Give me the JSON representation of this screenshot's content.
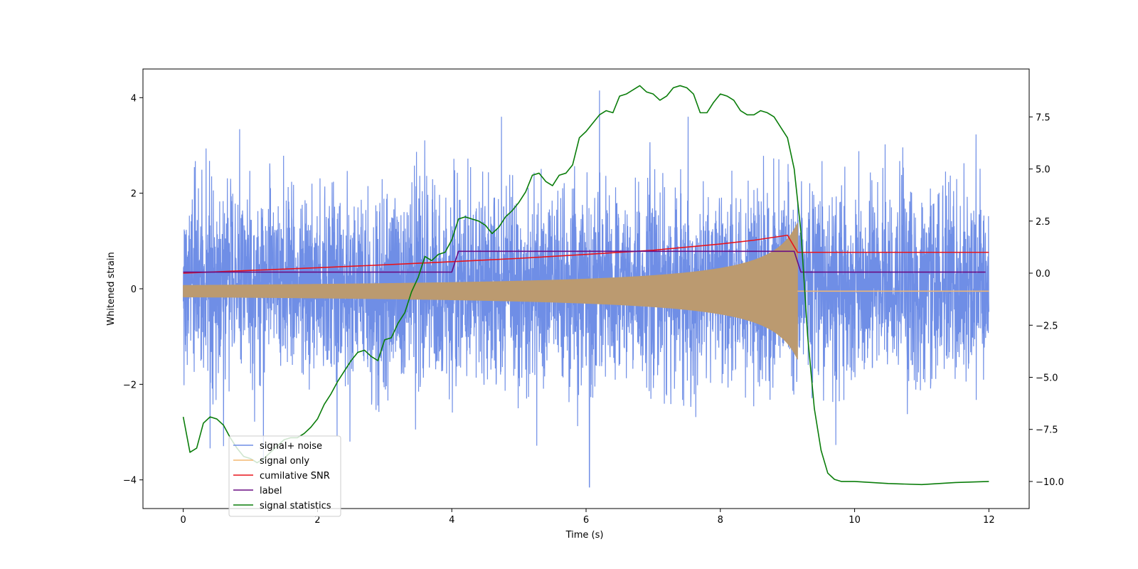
{
  "chart_data": {
    "type": "line",
    "xlabel": "Time (s)",
    "ylabel": "Whitened strain",
    "xlim": [
      -0.6,
      12.6
    ],
    "ylim_left": [
      -4.6,
      4.6
    ],
    "ylim_right": [
      -11.3,
      9.8
    ],
    "x_ticks": [
      0,
      2,
      4,
      6,
      8,
      10,
      12
    ],
    "x_tick_labels": [
      "0",
      "2",
      "4",
      "6",
      "8",
      "10",
      "12"
    ],
    "y_ticks_left": [
      -4,
      -2,
      0,
      2,
      4
    ],
    "y_tick_labels_left": [
      "−4",
      "−2",
      "0",
      "2",
      "4"
    ],
    "y_ticks_right": [
      -10,
      -7.5,
      -5,
      -2.5,
      0,
      2.5,
      5,
      7.5
    ],
    "y_tick_labels_right": [
      "−10.0",
      "−7.5",
      "−5.0",
      "−2.5",
      "0.0",
      "2.5",
      "5.0",
      "7.5"
    ],
    "grid": false,
    "legend_position": "lower-left",
    "colors": {
      "noise": "#6f8ee6",
      "signal": "#f4b870",
      "snr": "#e8141c",
      "label": "#6a0d83",
      "stat": "#0a7d0a"
    },
    "series": [
      {
        "name": "signal+ noise",
        "axis": "left",
        "description_values": "noisy whitened strain, roughly ±2 with spikes up to about ±4, from t=0 to t=12",
        "extremes": {
          "max": 4.15,
          "min": -4.15,
          "t_max": 6.2,
          "t_min": 6.05
        }
      },
      {
        "name": "signal only",
        "axis": "left",
        "chirp": {
          "t_start": 0,
          "t_merge": 9.15,
          "t_end": 12,
          "amp_start": 0.12,
          "amp_peak": 1.5,
          "offset": -0.05
        }
      },
      {
        "name": "cumilative SNR",
        "axis": "right",
        "x": [
          0,
          1,
          2,
          3,
          4,
          5,
          6,
          7,
          8,
          8.5,
          9,
          9.15,
          9.5,
          10,
          11,
          12
        ],
        "y": [
          0.0,
          0.13,
          0.26,
          0.4,
          0.55,
          0.71,
          0.9,
          1.1,
          1.4,
          1.58,
          1.82,
          1.0,
          1.0,
          1.0,
          1.0,
          1.0
        ],
        "final_value": 1.0
      },
      {
        "name": "label",
        "axis": "right",
        "x": [
          0,
          4.0,
          4.1,
          9.1,
          9.2,
          11.95
        ],
        "y": [
          0.05,
          0.05,
          1.05,
          1.05,
          0.05,
          0.05
        ]
      },
      {
        "name": "signal statistics",
        "axis": "right",
        "x": [
          0,
          0.1,
          0.2,
          0.3,
          0.4,
          0.5,
          0.6,
          0.7,
          0.8,
          0.9,
          1.0,
          1.1,
          1.2,
          1.3,
          1.4,
          1.5,
          1.6,
          1.7,
          1.8,
          1.9,
          2.0,
          2.1,
          2.2,
          2.3,
          2.4,
          2.5,
          2.6,
          2.7,
          2.8,
          2.9,
          3.0,
          3.1,
          3.2,
          3.3,
          3.4,
          3.5,
          3.6,
          3.7,
          3.8,
          3.9,
          4.0,
          4.1,
          4.2,
          4.3,
          4.4,
          4.5,
          4.6,
          4.7,
          4.8,
          4.9,
          5.0,
          5.1,
          5.2,
          5.3,
          5.4,
          5.5,
          5.6,
          5.7,
          5.8,
          5.9,
          6.0,
          6.1,
          6.2,
          6.3,
          6.4,
          6.5,
          6.6,
          6.7,
          6.8,
          6.9,
          7.0,
          7.1,
          7.2,
          7.3,
          7.4,
          7.5,
          7.6,
          7.7,
          7.8,
          7.9,
          8.0,
          8.1,
          8.2,
          8.3,
          8.4,
          8.5,
          8.6,
          8.7,
          8.8,
          8.9,
          9.0,
          9.1,
          9.2,
          9.3,
          9.4,
          9.5,
          9.6,
          9.7,
          9.8,
          10.0,
          10.5,
          11.0,
          11.5,
          12.0
        ],
        "y": [
          -6.9,
          -8.6,
          -8.4,
          -7.2,
          -6.9,
          -7.0,
          -7.3,
          -7.9,
          -8.4,
          -8.8,
          -8.9,
          -9.1,
          -8.9,
          -8.6,
          -8.3,
          -8.0,
          -7.9,
          -7.9,
          -7.7,
          -7.4,
          -7.0,
          -6.3,
          -5.8,
          -5.2,
          -4.7,
          -4.2,
          -3.8,
          -3.7,
          -4.0,
          -4.2,
          -3.2,
          -3.1,
          -2.4,
          -1.9,
          -0.9,
          -0.2,
          0.8,
          0.6,
          0.9,
          1.0,
          1.6,
          2.6,
          2.7,
          2.6,
          2.5,
          2.3,
          1.9,
          2.2,
          2.7,
          3.0,
          3.4,
          3.9,
          4.7,
          4.8,
          4.4,
          4.2,
          4.7,
          4.8,
          5.2,
          6.5,
          6.8,
          7.2,
          7.6,
          7.8,
          7.7,
          8.5,
          8.6,
          8.8,
          9.0,
          8.7,
          8.6,
          8.3,
          8.5,
          8.9,
          9.0,
          8.9,
          8.6,
          7.7,
          7.7,
          8.2,
          8.6,
          8.5,
          8.3,
          7.8,
          7.6,
          7.6,
          7.8,
          7.7,
          7.5,
          7.0,
          6.5,
          5.0,
          2.0,
          -3.0,
          -6.5,
          -8.5,
          -9.6,
          -9.9,
          -10.0,
          -10.0,
          -10.1,
          -10.15,
          -10.05,
          -10.0
        ]
      }
    ],
    "legend": [
      {
        "label": "signal+ noise",
        "color": "#6f8ee6"
      },
      {
        "label": "signal only",
        "color": "#f4b870"
      },
      {
        "label": "cumilative SNR",
        "color": "#e8141c"
      },
      {
        "label": "label",
        "color": "#6a0d83"
      },
      {
        "label": "signal statistics",
        "color": "#0a7d0a"
      }
    ]
  }
}
